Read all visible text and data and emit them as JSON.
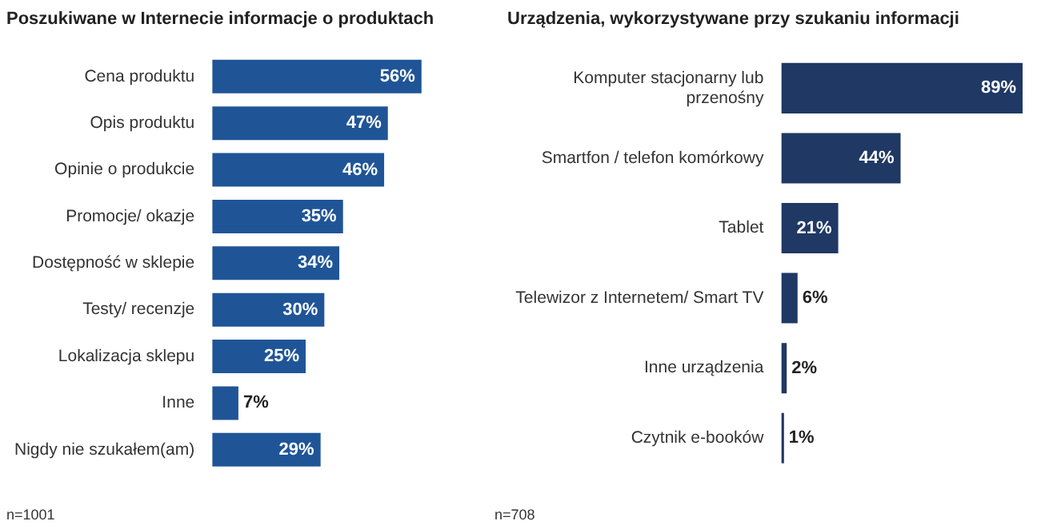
{
  "chart_data": [
    {
      "type": "bar",
      "orientation": "horizontal",
      "title": "Poszukiwane w Internecie informacje o produktach",
      "categories": [
        "Cena produktu",
        "Opis produktu",
        "Opinie o produkcie",
        "Promocje/ okazje",
        "Dostępność w sklepie",
        "Testy/ recenzje",
        "Lokalizacja sklepu",
        "Inne",
        "Nigdy nie szukałem(am)"
      ],
      "values": [
        56,
        47,
        46,
        35,
        34,
        30,
        25,
        7,
        29
      ],
      "value_labels": [
        "56%",
        "47%",
        "46%",
        "35%",
        "34%",
        "30%",
        "25%",
        "7%",
        "29%"
      ],
      "color": "#1f5597",
      "annotations": [
        "n=1001"
      ]
    },
    {
      "type": "bar",
      "orientation": "horizontal",
      "title": "Urządzenia, wykorzystywane przy szukaniu informacji",
      "categories": [
        "Komputer stacjonarny lub\nprzenośny",
        "Smartfon / telefon komórkowy",
        "Tablet",
        "Telewizor z Internetem/ Smart TV",
        "Inne urządzenia",
        "Czytnik e-booków"
      ],
      "values": [
        89,
        44,
        21,
        6,
        2,
        1
      ],
      "value_labels": [
        "89%",
        "44%",
        "21%",
        "6%",
        "2%",
        "1%"
      ],
      "color": "#1f3864",
      "annotations": [
        "n=708"
      ]
    }
  ]
}
